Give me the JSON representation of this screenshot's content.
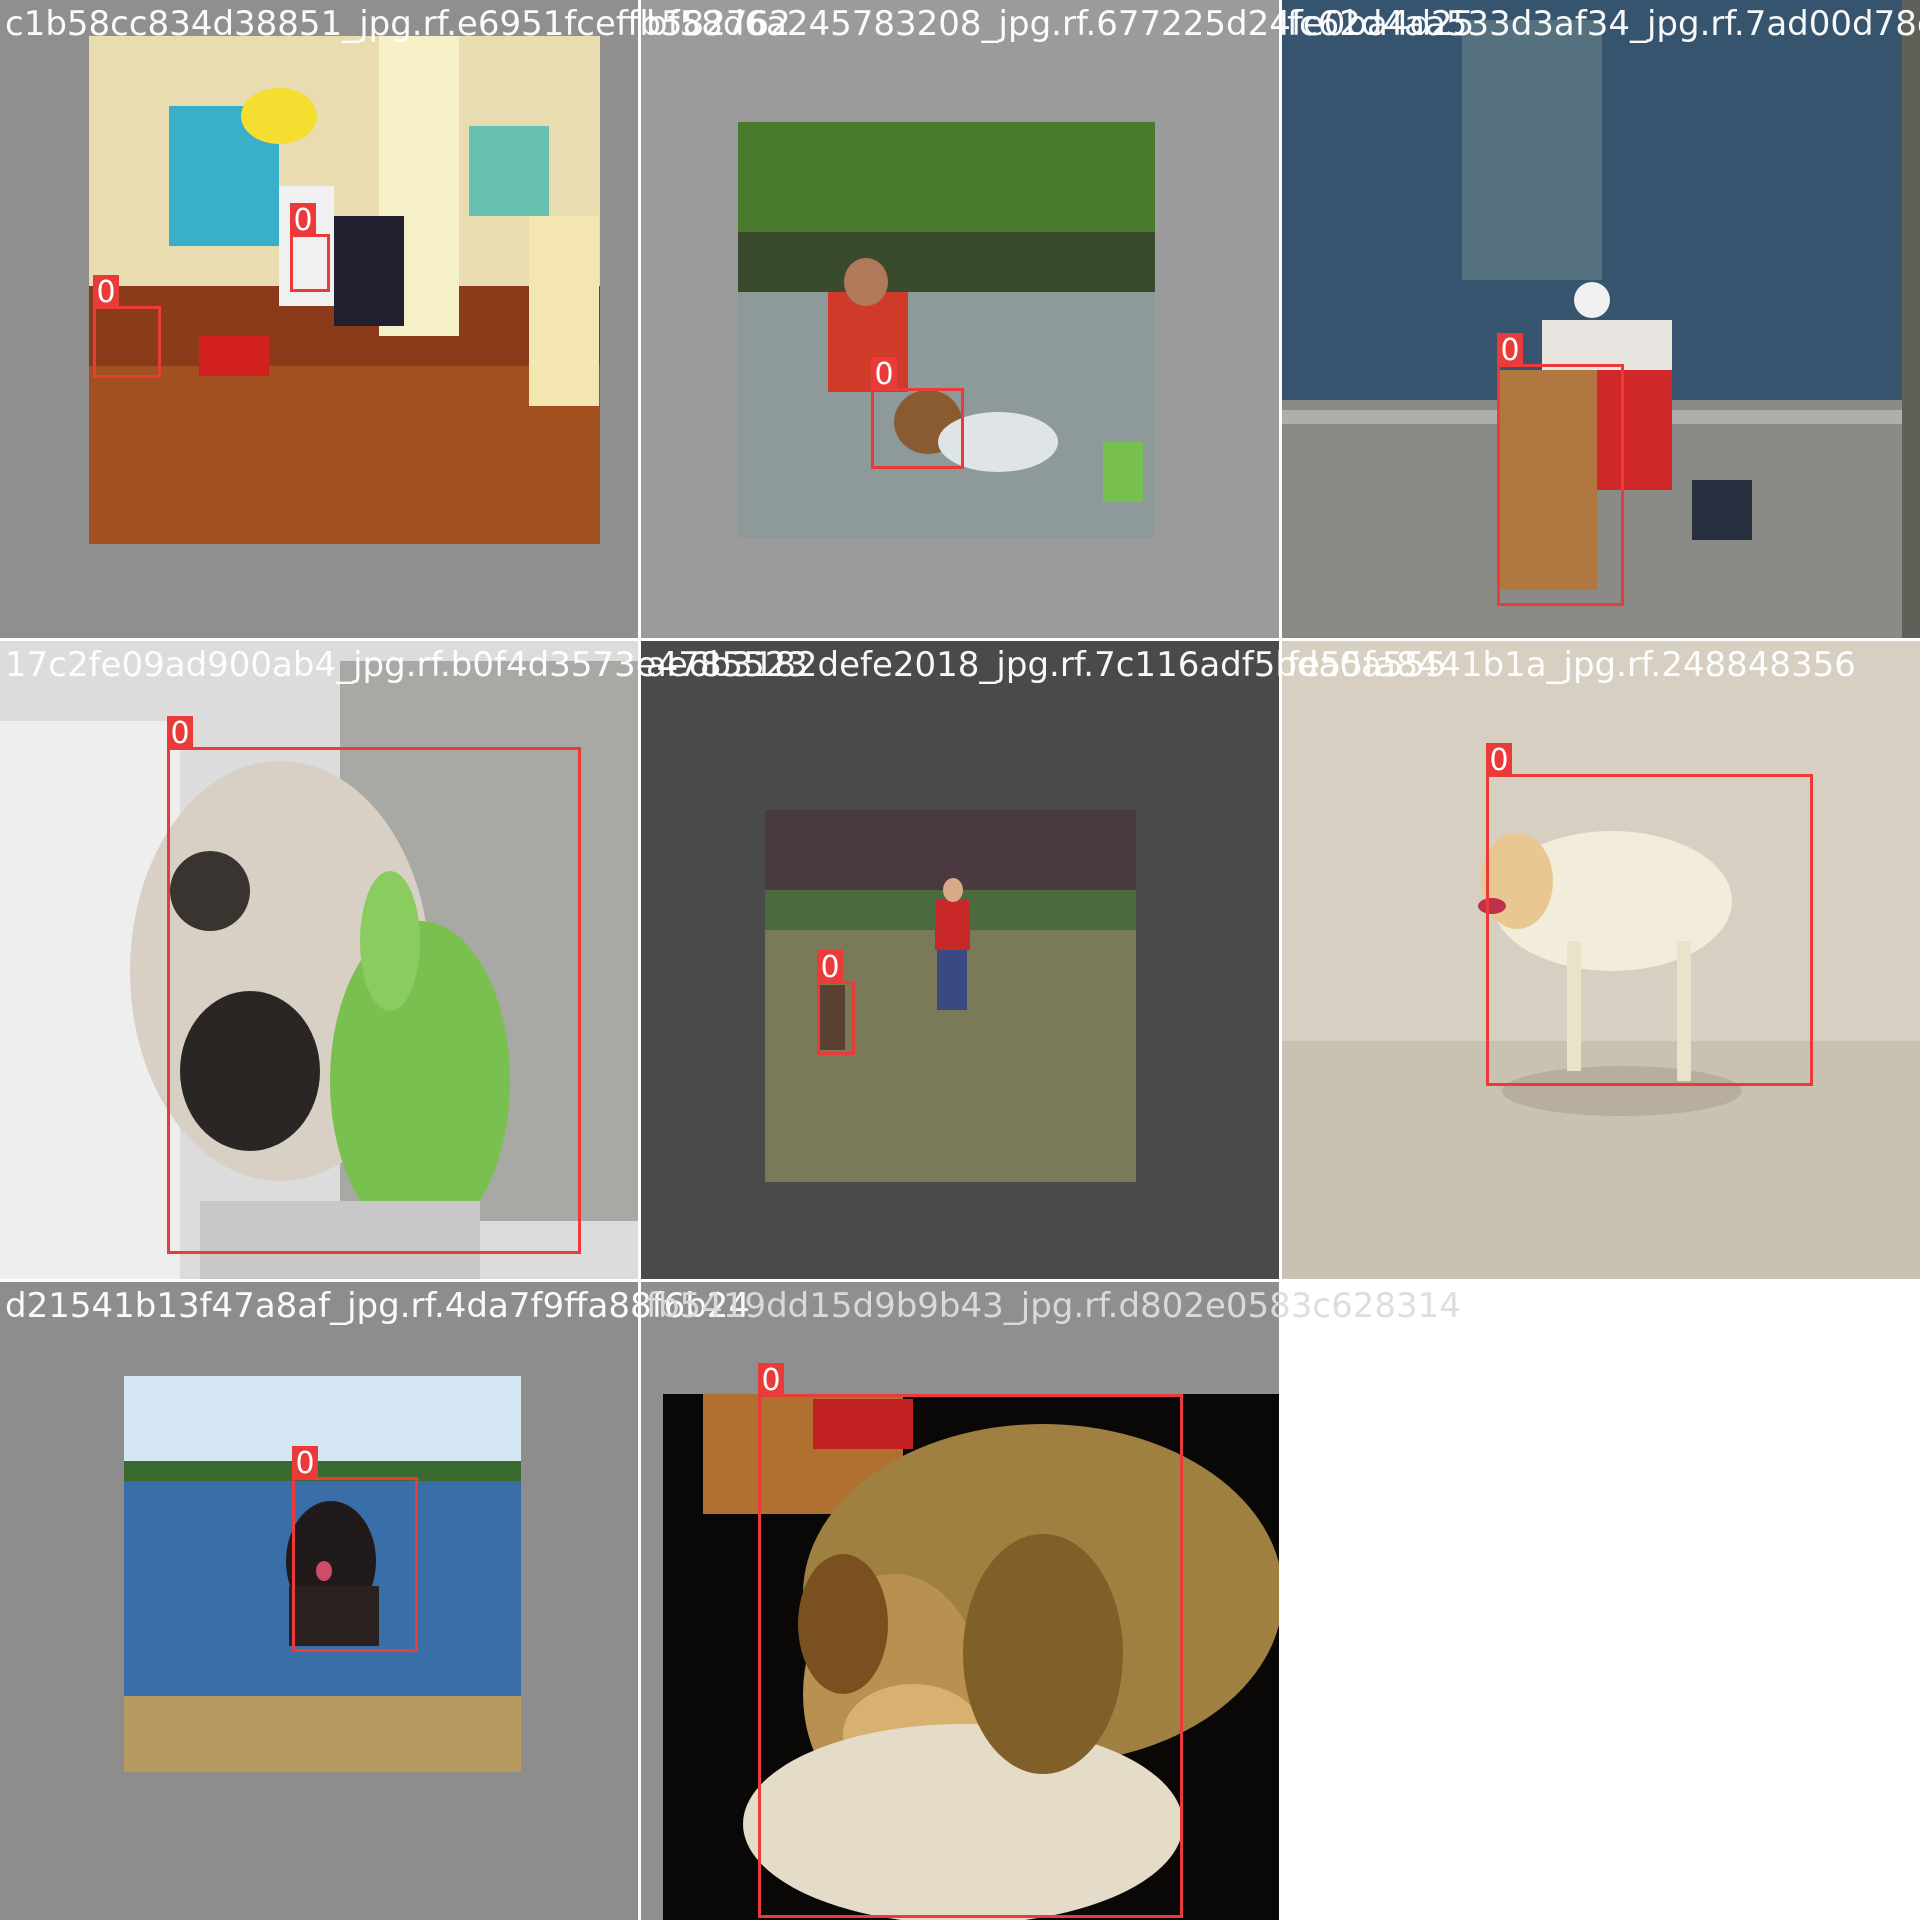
{
  "grid": {
    "background": "#ffffff",
    "box_color": "#ea3a3a",
    "tiles": [
      {
        "filename": "c1b58cc834d38851_jpg.rf.e6951fceffb582762",
        "tile_color": "#8f8f8f",
        "scene": "kids-scooter-room",
        "boxes": [
          {
            "label": "0"
          },
          {
            "label": "0"
          }
        ]
      },
      {
        "filename": "bf58d6a245783208_jpg.rf.677225d24fe0ba4d25",
        "tile_color": "#9b9b9b",
        "scene": "river-swim",
        "boxes": [
          {
            "label": "0"
          }
        ]
      },
      {
        "filename": "fc62d4aa533d3af34_jpg.rf.7ad00d78ef",
        "tile_color": "#303840",
        "scene": "dock-fishing",
        "boxes": [
          {
            "label": "0"
          }
        ]
      },
      {
        "filename": "17c2fe09ad900ab4_jpg.rf.b0f4d3573e4785523",
        "tile_color": "#e0e0e0",
        "scene": "pug-plush",
        "boxes": [
          {
            "label": "0"
          }
        ]
      },
      {
        "filename": "ae6b3182defe2018_jpg.rf.7c116adf5bda0a555",
        "tile_color": "#4a4a4a",
        "scene": "park-run",
        "boxes": [
          {
            "label": "0"
          }
        ]
      },
      {
        "filename": "fe55fa8441b1a_jpg.rf.248848356",
        "tile_color": "#d8d2c6",
        "scene": "beach-lab",
        "boxes": [
          {
            "label": "0"
          }
        ]
      },
      {
        "filename": "d21541b13f47a8af_jpg.rf.4da7f9ffa88f6b24",
        "tile_color": "#8d8d8d",
        "scene": "lake-dog",
        "boxes": [
          {
            "label": "0"
          }
        ]
      },
      {
        "filename": "fb5419dd15d9b9b43_jpg.rf.d802e0583c628314",
        "tile_color": "#8f8f8f",
        "scene": "sleeping-dog",
        "boxes": [
          {
            "label": "0"
          }
        ]
      }
    ]
  }
}
